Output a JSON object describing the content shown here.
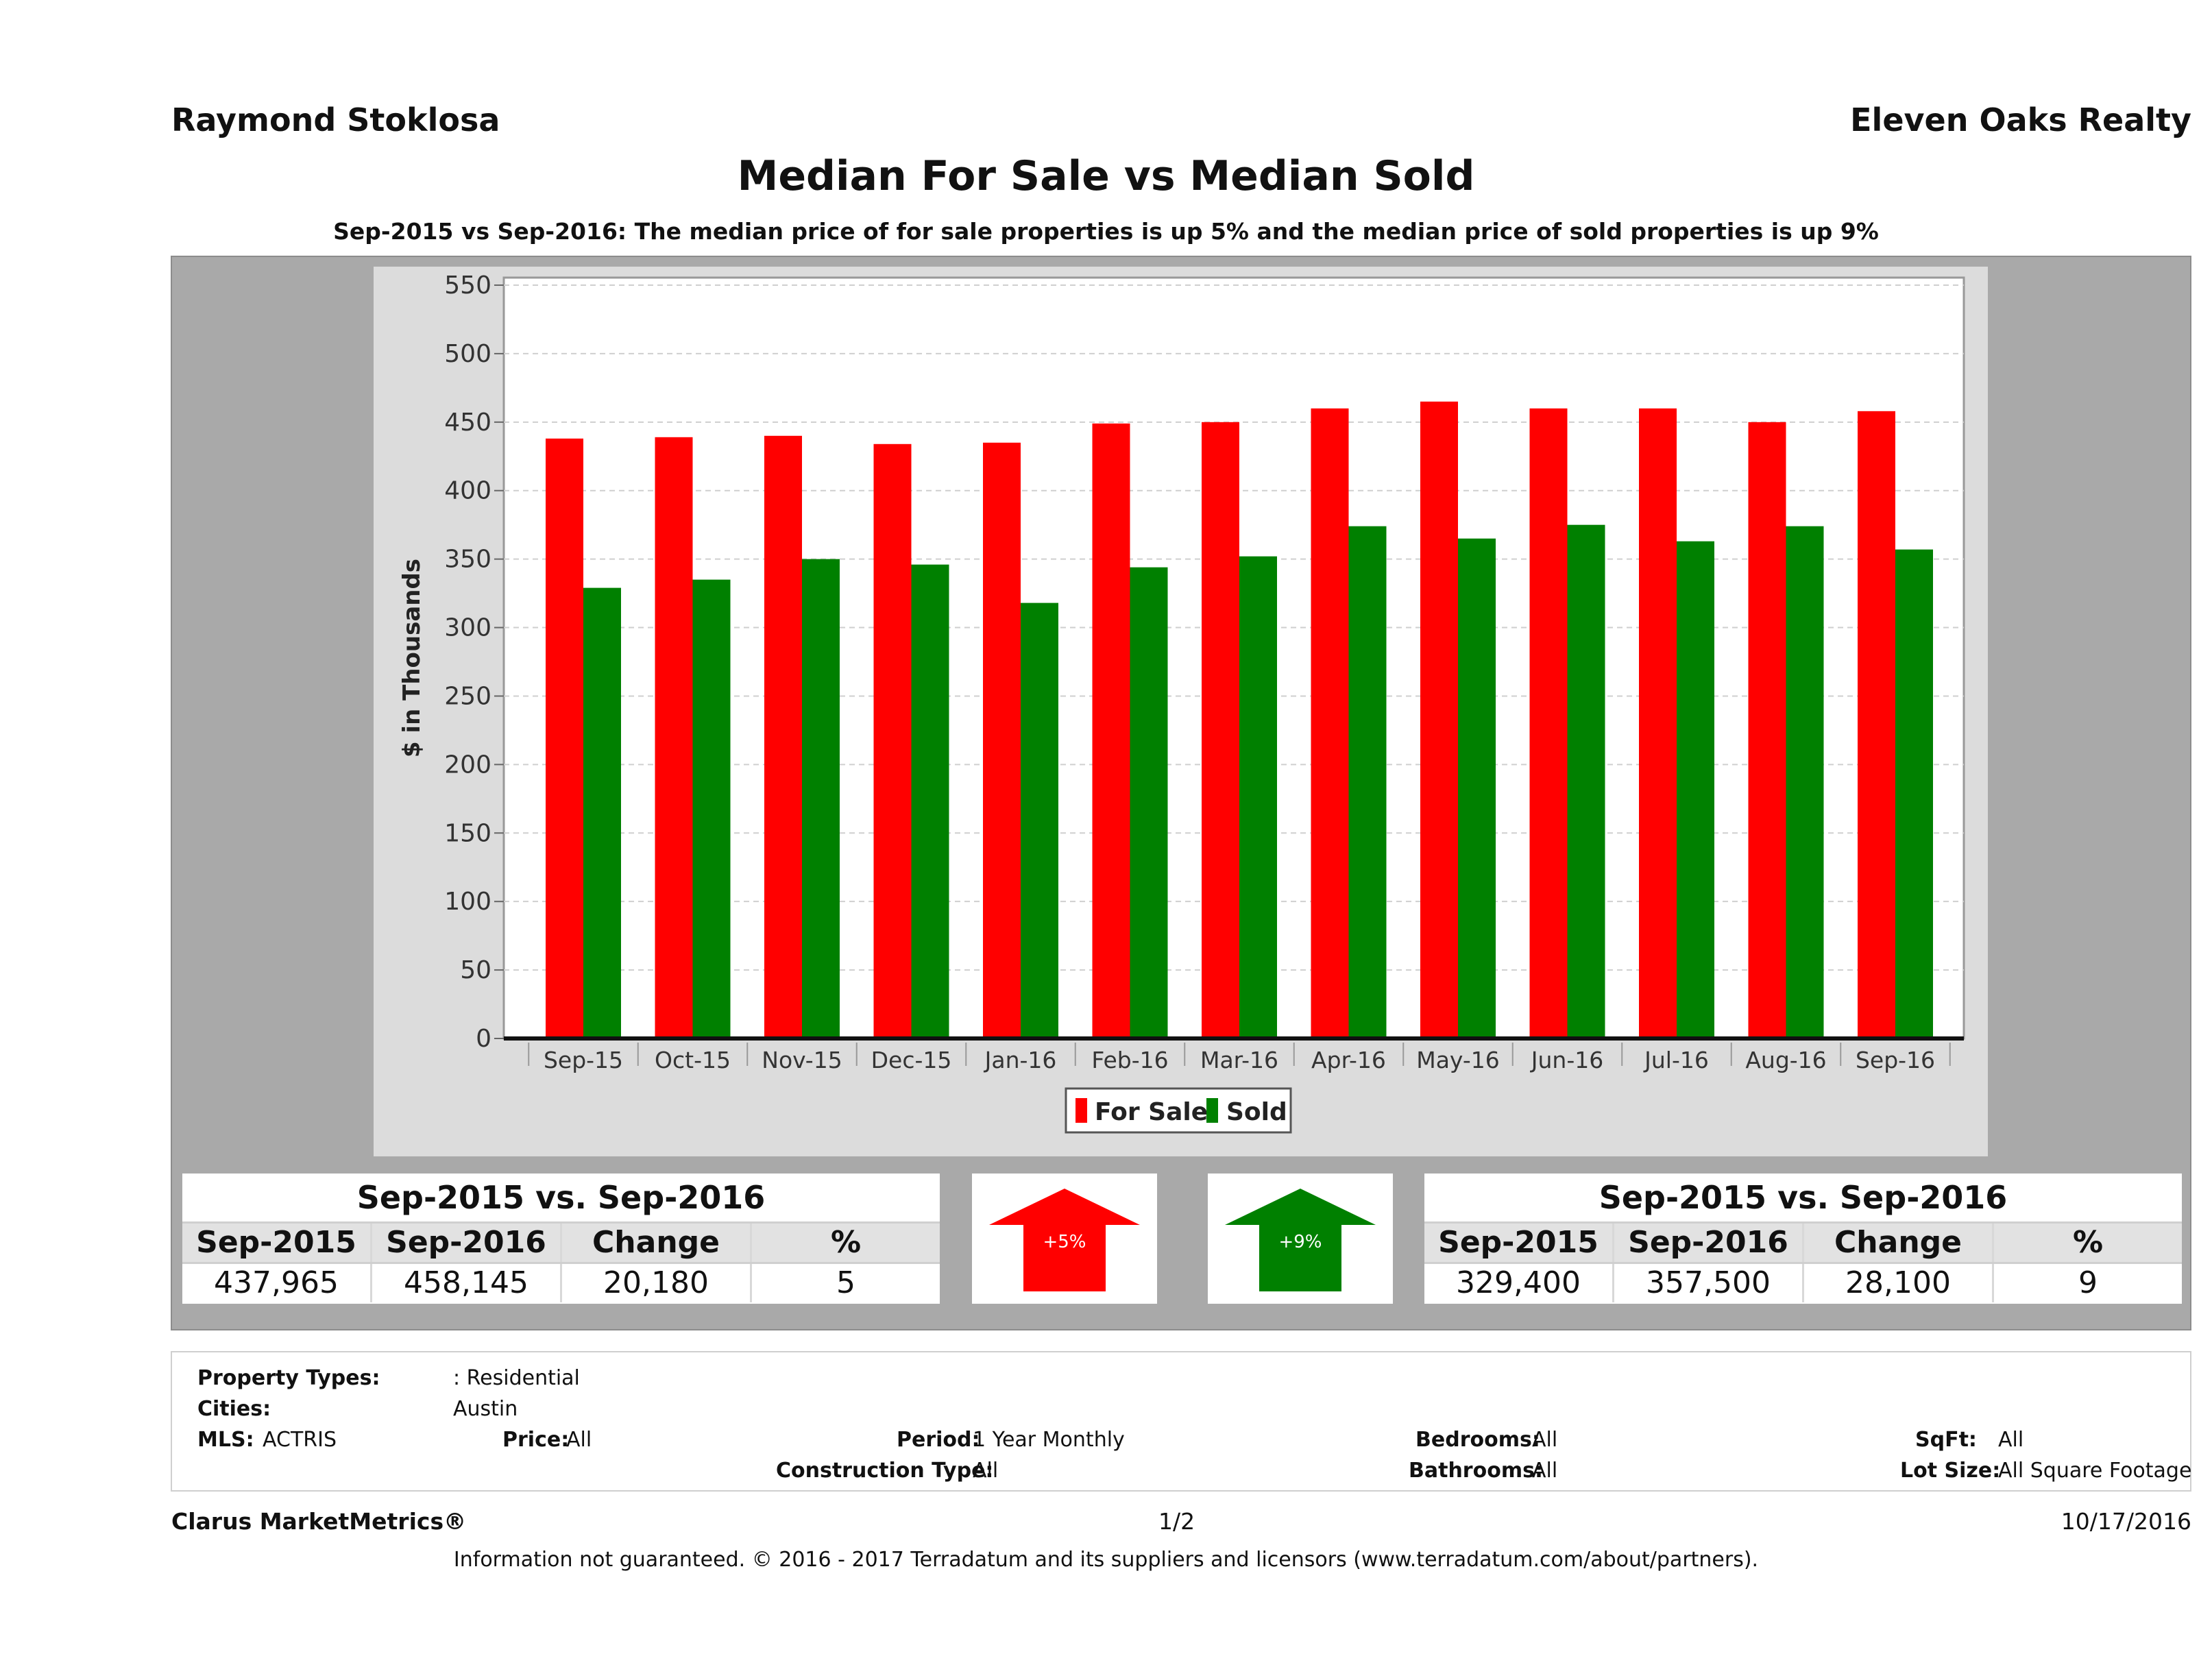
{
  "header": {
    "agent": "Raymond Stoklosa",
    "company": "Eleven Oaks Realty"
  },
  "title": "Median For Sale vs Median Sold",
  "subtitle": "Sep-2015 vs Sep-2016: The median price of for sale properties is up 5% and the median price of sold properties is up 9%",
  "chart_data": {
    "type": "bar",
    "ylabel": "$ in Thousands",
    "xlabel": "",
    "ylim": [
      0,
      550
    ],
    "yticks": [
      0,
      50,
      100,
      150,
      200,
      250,
      300,
      350,
      400,
      450,
      500,
      550
    ],
    "grid": true,
    "legend_position": "bottom",
    "categories": [
      "Sep-15",
      "Oct-15",
      "Nov-15",
      "Dec-15",
      "Jan-16",
      "Feb-16",
      "Mar-16",
      "Apr-16",
      "May-16",
      "Jun-16",
      "Jul-16",
      "Aug-16",
      "Sep-16"
    ],
    "series": [
      {
        "name": "For Sale",
        "color": "#ff0000",
        "values": [
          438,
          439,
          440,
          434,
          435,
          449,
          450,
          460,
          465,
          460,
          460,
          450,
          458
        ]
      },
      {
        "name": "Sold",
        "color": "#008000",
        "values": [
          329,
          335,
          350,
          346,
          318,
          344,
          352,
          374,
          365,
          375,
          363,
          374,
          357
        ]
      }
    ]
  },
  "stats_left": {
    "heading": "Sep-2015 vs. Sep-2016",
    "columns": [
      "Sep-2015",
      "Sep-2016",
      "Change",
      "%"
    ],
    "values": [
      "437,965",
      "458,145",
      "20,180",
      "5"
    ]
  },
  "stats_right": {
    "heading": "Sep-2015 vs. Sep-2016",
    "columns": [
      "Sep-2015",
      "Sep-2016",
      "Change",
      "%"
    ],
    "values": [
      "329,400",
      "357,500",
      "28,100",
      "9"
    ]
  },
  "arrows": {
    "for_sale": {
      "label": "+5%",
      "color": "#ff0000"
    },
    "sold": {
      "label": "+9%",
      "color": "#008000"
    }
  },
  "filters": {
    "property_types_label": "Property Types:",
    "property_types_value": ": Residential",
    "cities_label": "Cities:",
    "cities_value": "Austin",
    "mls_label": "MLS:",
    "mls_value": "ACTRIS",
    "price_label": "Price:",
    "price_value": "All",
    "period_label": "Period:",
    "period_value": "1 Year Monthly",
    "construction_label": "Construction Type:",
    "construction_value": "All",
    "bedrooms_label": "Bedrooms:",
    "bedrooms_value": "All",
    "bathrooms_label": "Bathrooms:",
    "bathrooms_value": "All",
    "sqft_label": "SqFt:",
    "sqft_value": "All",
    "lot_label": "Lot Size:",
    "lot_value": "All Square Footage"
  },
  "footer": {
    "brand": "Clarus MarketMetrics®",
    "page": "1/2",
    "date": "10/17/2016",
    "disclaimer": "Information not guaranteed. © 2016 - 2017 Terradatum and its suppliers and licensors (www.terradatum.com/about/partners)."
  }
}
